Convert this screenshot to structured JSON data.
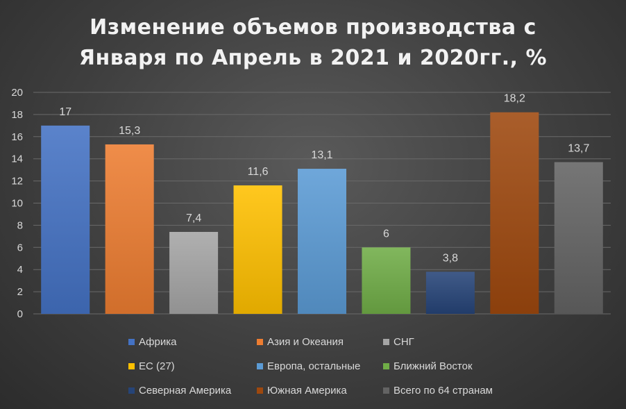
{
  "chart_data": {
    "type": "bar",
    "title": "Изменение объемов производства с Января по Апрель в 2021 и 2020гг., %",
    "title_lines": [
      "Изменение объемов производства с",
      "Января по Апрель в 2021 и 2020гг., %"
    ],
    "categories": [
      "Африка",
      "Азия и Океания",
      "СНГ",
      "ЕС (27)",
      "Европа, остальные",
      "Ближний Восток",
      "Северная Америка",
      "Южная Америка",
      "Всего по 64 странам"
    ],
    "values": [
      17,
      15.3,
      7.4,
      11.6,
      13.1,
      6,
      3.8,
      18.2,
      13.7
    ],
    "value_labels": [
      "17",
      "15,3",
      "7,4",
      "11,6",
      "13,1",
      "6",
      "3,8",
      "18,2",
      "13,7"
    ],
    "colors": [
      "#4472c4",
      "#ed7d31",
      "#a5a5a5",
      "#ffc000",
      "#5b9bd5",
      "#70ad47",
      "#264478",
      "#9e480e",
      "#636363"
    ],
    "ylim": [
      0,
      20
    ],
    "yticks": [
      "0",
      "2",
      "4",
      "6",
      "8",
      "10",
      "12",
      "14",
      "16",
      "18",
      "20"
    ],
    "grid": true,
    "legend_position": "bottom"
  }
}
